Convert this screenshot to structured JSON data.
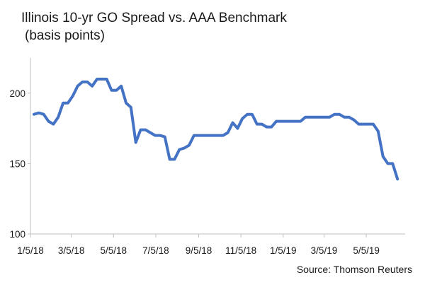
{
  "chart_data": {
    "type": "line",
    "title": "Illinois 10-yr GO Spread vs. AAA Benchmark",
    "subtitle": "(basis points)",
    "source": "Source: Thomson Reuters",
    "xlabel": "",
    "ylabel": "",
    "ylim": [
      100,
      225
    ],
    "yticks": [
      100,
      150,
      200
    ],
    "xticks": [
      "1/5/18",
      "3/5/18",
      "5/5/18",
      "7/5/18",
      "9/5/18",
      "11/5/18",
      "1/5/19",
      "3/5/19",
      "5/5/19"
    ],
    "x_range": [
      "1/5/18",
      "6/14/19"
    ],
    "grid": false,
    "line_color": "#4472C4",
    "series": [
      {
        "values": [
          [
            "1/5/18",
            185
          ],
          [
            "1/12/18",
            186
          ],
          [
            "1/19/18",
            185
          ],
          [
            "1/26/18",
            180
          ],
          [
            "2/2/18",
            178
          ],
          [
            "2/9/18",
            183
          ],
          [
            "2/16/18",
            193
          ],
          [
            "2/23/18",
            193
          ],
          [
            "3/2/18",
            198
          ],
          [
            "3/9/18",
            205
          ],
          [
            "3/16/18",
            208
          ],
          [
            "3/23/18",
            208
          ],
          [
            "3/30/18",
            205
          ],
          [
            "4/6/18",
            210
          ],
          [
            "4/13/18",
            210
          ],
          [
            "4/20/18",
            210
          ],
          [
            "4/27/18",
            202
          ],
          [
            "5/4/18",
            202
          ],
          [
            "5/11/18",
            205
          ],
          [
            "5/18/18",
            193
          ],
          [
            "5/25/18",
            190
          ],
          [
            "6/1/18",
            165
          ],
          [
            "6/8/18",
            174
          ],
          [
            "6/15/18",
            174
          ],
          [
            "6/22/18",
            172
          ],
          [
            "6/29/18",
            170
          ],
          [
            "7/6/18",
            170
          ],
          [
            "7/13/18",
            169
          ],
          [
            "7/20/18",
            153
          ],
          [
            "7/27/18",
            153
          ],
          [
            "8/3/18",
            160
          ],
          [
            "8/10/18",
            161
          ],
          [
            "8/17/18",
            163
          ],
          [
            "8/24/18",
            170
          ],
          [
            "8/31/18",
            170
          ],
          [
            "9/7/18",
            170
          ],
          [
            "9/14/18",
            170
          ],
          [
            "9/21/18",
            170
          ],
          [
            "9/28/18",
            170
          ],
          [
            "10/5/18",
            170
          ],
          [
            "10/12/18",
            172
          ],
          [
            "10/19/18",
            179
          ],
          [
            "10/26/18",
            175
          ],
          [
            "11/2/18",
            182
          ],
          [
            "11/9/18",
            185
          ],
          [
            "11/16/18",
            185
          ],
          [
            "11/23/18",
            178
          ],
          [
            "11/30/18",
            178
          ],
          [
            "12/7/18",
            176
          ],
          [
            "12/14/18",
            176
          ],
          [
            "12/21/18",
            180
          ],
          [
            "12/28/18",
            180
          ],
          [
            "1/4/19",
            180
          ],
          [
            "1/11/19",
            180
          ],
          [
            "1/18/19",
            180
          ],
          [
            "1/25/19",
            180
          ],
          [
            "2/1/19",
            183
          ],
          [
            "2/8/19",
            183
          ],
          [
            "2/15/19",
            183
          ],
          [
            "2/22/19",
            183
          ],
          [
            "3/1/19",
            183
          ],
          [
            "3/8/19",
            183
          ],
          [
            "3/15/19",
            185
          ],
          [
            "3/22/19",
            185
          ],
          [
            "3/29/19",
            183
          ],
          [
            "4/5/19",
            183
          ],
          [
            "4/12/19",
            181
          ],
          [
            "4/19/19",
            178
          ],
          [
            "4/26/19",
            178
          ],
          [
            "5/3/19",
            178
          ],
          [
            "5/10/19",
            178
          ],
          [
            "5/17/19",
            173
          ],
          [
            "5/24/19",
            155
          ],
          [
            "5/31/19",
            150
          ],
          [
            "6/7/19",
            150
          ],
          [
            "6/14/19",
            139
          ]
        ]
      }
    ]
  }
}
